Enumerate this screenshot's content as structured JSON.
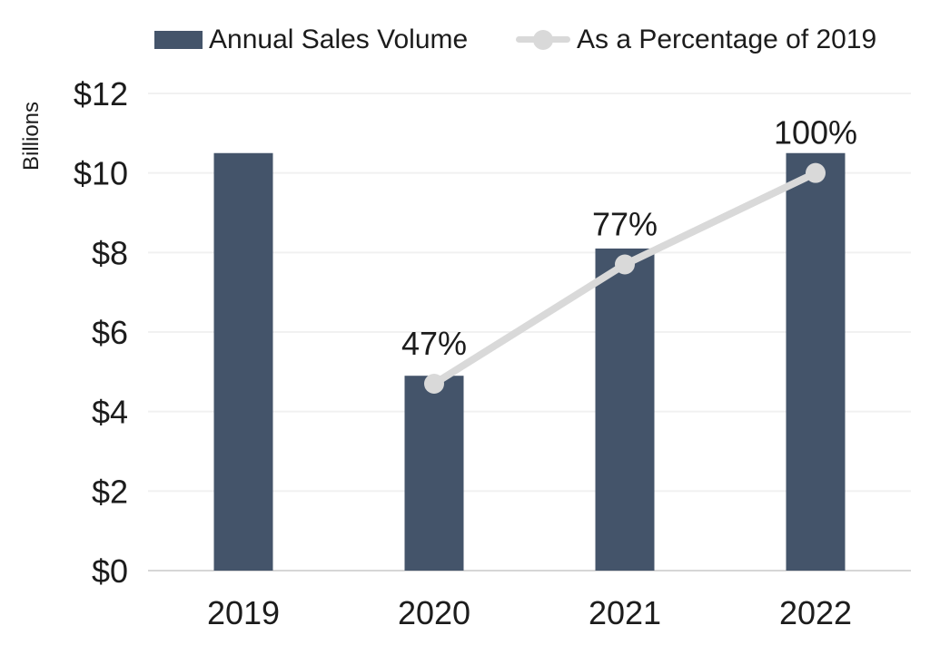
{
  "chart_data": {
    "type": "combo_bar_line",
    "title": "",
    "categories": [
      "2019",
      "2020",
      "2021",
      "2022"
    ],
    "series": [
      {
        "name": "Annual Sales Volume",
        "kind": "bar",
        "axis": "primary",
        "unit": "billions USD",
        "color": "#44546A",
        "values": [
          10.5,
          4.9,
          8.1,
          10.5
        ]
      },
      {
        "name": "As a Percentage of 2019",
        "kind": "line",
        "axis": "secondary",
        "color": "#D9D9D9",
        "values": [
          null,
          47,
          77,
          100
        ],
        "point_labels": [
          "",
          "47%",
          "77%",
          "100%"
        ]
      }
    ],
    "y_axis": {
      "label": "Billions",
      "tick_labels": [
        "$12",
        "$10",
        "$8",
        "$6",
        "$4",
        "$2",
        "$0"
      ],
      "tick_values": [
        12,
        10,
        8,
        6,
        4,
        2,
        0
      ],
      "min": 0,
      "max": 12
    },
    "secondary_y_axis": {
      "min": 0,
      "max": 120,
      "visible": false
    },
    "x_axis": {
      "tick_labels": [
        "2019",
        "2020",
        "2021",
        "2022"
      ]
    },
    "grid": true,
    "legend_position": "top"
  },
  "colors": {
    "bar": "#44546A",
    "line": "#D9D9D9",
    "grid": "#F1F1F1",
    "axis_line": "#D6D6D6",
    "text": "#1C1C1C",
    "background": "#FFFFFF"
  }
}
